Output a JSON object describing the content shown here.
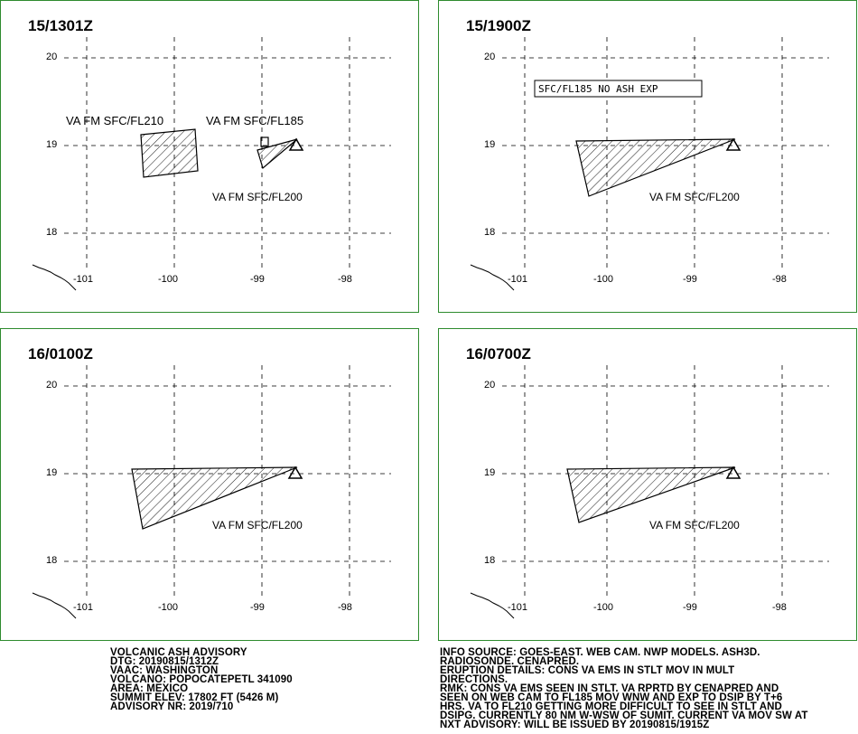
{
  "colors": {
    "frame": "#2e8b2e",
    "ink": "#000000",
    "background": "#ffffff"
  },
  "axes": {
    "lat_ticks": [
      "20",
      "19",
      "18"
    ],
    "lon_ticks": [
      "-101",
      "-100",
      "-99",
      "-98"
    ]
  },
  "panels": [
    {
      "title": "15/1301Z",
      "labels": [
        "VA FM SFC/FL210",
        "VA FM SFC/FL185",
        "VA FM SFC/FL200"
      ],
      "boxed_label": "",
      "has_volcano": true
    },
    {
      "title": "15/1900Z",
      "labels": [
        "VA FM SFC/FL200"
      ],
      "boxed_label": "SFC/FL185 NO ASH EXP",
      "has_volcano": true
    },
    {
      "title": "16/0100Z",
      "labels": [
        "VA FM SFC/FL200"
      ],
      "boxed_label": "",
      "has_volcano": true
    },
    {
      "title": "16/0700Z",
      "labels": [
        "VA FM SFC/FL200"
      ],
      "boxed_label": "",
      "has_volcano": true
    }
  ],
  "advisory": {
    "lines": [
      "VOLCANIC ASH ADVISORY",
      "DTG: 20190815/1312Z",
      "VAAC: WASHINGTON",
      "VOLCANO: POPOCATEPETL 341090",
      "AREA: MEXICO",
      "SUMMIT ELEV: 17802 FT (5426 M)",
      "ADVISORY NR: 2019/710"
    ]
  },
  "remarks": {
    "lines": [
      "INFO SOURCE: GOES-EAST. WEB CAM. NWP MODELS. ASH3D.",
      "RADIOSONDE. CENAPRED.",
      "ERUPTION DETAILS: CONS VA EMS IN STLT MOV IN MULT",
      "DIRECTIONS.",
      "RMK: CONS VA EMS SEEN IN STLT. VA RPRTD BY CENAPRED AND",
      "SEEN ON WEB CAM TO FL185 MOV WNW AND EXP TO DSIP BY T+6",
      "HRS. VA TO FL210 GETTING MORE DIFFICULT TO SEE IN STLT AND",
      "DSIPG. CURRENTLY 80 NM W-WSW OF SUMIT. CURRENT VA MOV SW AT",
      "NXT ADVISORY: WILL BE ISSUED BY 20190815/1915Z"
    ]
  }
}
